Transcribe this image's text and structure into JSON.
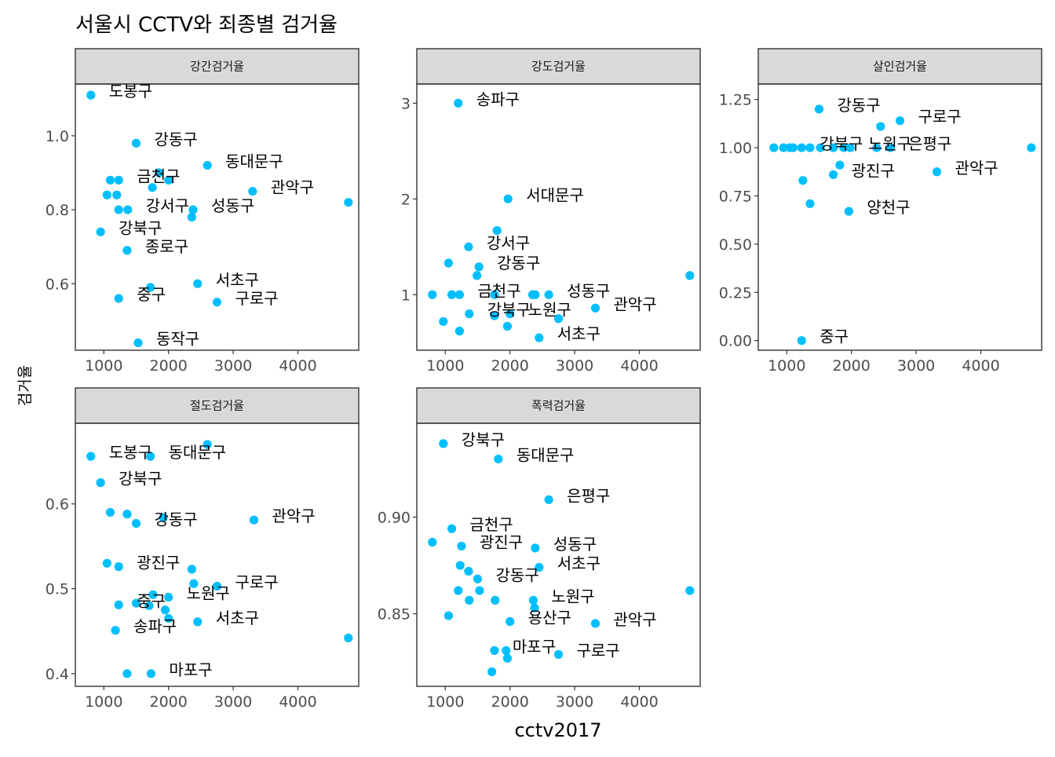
{
  "title": "서울시 CCTV와 죄종별 검거율",
  "chart_data": {
    "type": "scatter",
    "title": "서울시 CCTV와 죄종별 검거율",
    "xlabel": "cctv2017",
    "ylabel": "검거율",
    "xlim": [
      560,
      4940
    ],
    "xticks": [
      1000,
      2000,
      3000,
      4000
    ],
    "grid": false,
    "color": "#00bfff",
    "panels": [
      {
        "name": "강간검거율",
        "ylim": [
          0.42,
          1.14
        ],
        "yticks": [
          0.6,
          0.8,
          1.0
        ],
        "ytick_labels": [
          "0.6",
          "0.8",
          "1.0"
        ],
        "points": [
          {
            "x": 800,
            "y": 1.11,
            "label": "도봉구"
          },
          {
            "x": 1500,
            "y": 0.98,
            "label": "강동구"
          },
          {
            "x": 1100,
            "y": 0.88,
            "label": ""
          },
          {
            "x": 1230,
            "y": 0.88,
            "label": "금천구"
          },
          {
            "x": 1850,
            "y": 0.9,
            "label": ""
          },
          {
            "x": 2000,
            "y": 0.88,
            "label": ""
          },
          {
            "x": 2600,
            "y": 0.92,
            "label": "동대문구"
          },
          {
            "x": 1750,
            "y": 0.86,
            "label": ""
          },
          {
            "x": 1050,
            "y": 0.84,
            "label": ""
          },
          {
            "x": 1200,
            "y": 0.84,
            "label": ""
          },
          {
            "x": 3300,
            "y": 0.85,
            "label": "관악구"
          },
          {
            "x": 4780,
            "y": 0.82,
            "label": ""
          },
          {
            "x": 1230,
            "y": 0.8,
            "label": ""
          },
          {
            "x": 1370,
            "y": 0.8,
            "label": "강서구"
          },
          {
            "x": 2380,
            "y": 0.8,
            "label": "성동구"
          },
          {
            "x": 2360,
            "y": 0.78,
            "label": ""
          },
          {
            "x": 950,
            "y": 0.74,
            "label": "강북구"
          },
          {
            "x": 1360,
            "y": 0.69,
            "label": "종로구"
          },
          {
            "x": 1720,
            "y": 0.59,
            "label": ""
          },
          {
            "x": 2450,
            "y": 0.6,
            "label": "서초구"
          },
          {
            "x": 1230,
            "y": 0.56,
            "label": "중구"
          },
          {
            "x": 2750,
            "y": 0.55,
            "label": "구로구"
          },
          {
            "x": 1530,
            "y": 0.44,
            "label": "동작구"
          }
        ]
      },
      {
        "name": "강도검거율",
        "ylim": [
          0.42,
          3.2
        ],
        "yticks": [
          1,
          2,
          3
        ],
        "ytick_labels": [
          "1",
          "2",
          "3"
        ],
        "points": [
          {
            "x": 1200,
            "y": 3.0,
            "label": "송파구"
          },
          {
            "x": 1970,
            "y": 2.0,
            "label": "서대문구"
          },
          {
            "x": 1800,
            "y": 1.67,
            "label": ""
          },
          {
            "x": 1360,
            "y": 1.5,
            "label": "강서구"
          },
          {
            "x": 1050,
            "y": 1.33,
            "label": ""
          },
          {
            "x": 1520,
            "y": 1.29,
            "label": "강동구"
          },
          {
            "x": 1490,
            "y": 1.2,
            "label": ""
          },
          {
            "x": 4780,
            "y": 1.2,
            "label": ""
          },
          {
            "x": 800,
            "y": 1.0,
            "label": ""
          },
          {
            "x": 1100,
            "y": 1.0,
            "label": ""
          },
          {
            "x": 1220,
            "y": 1.0,
            "label": "금천구"
          },
          {
            "x": 1760,
            "y": 1.0,
            "label": ""
          },
          {
            "x": 2350,
            "y": 1.0,
            "label": ""
          },
          {
            "x": 2390,
            "y": 1.0,
            "label": ""
          },
          {
            "x": 2600,
            "y": 1.0,
            "label": "성동구"
          },
          {
            "x": 3320,
            "y": 0.86,
            "label": "관악구"
          },
          {
            "x": 1370,
            "y": 0.8,
            "label": "강북구"
          },
          {
            "x": 1760,
            "y": 0.78,
            "label": ""
          },
          {
            "x": 2000,
            "y": 0.8,
            "label": "노원구"
          },
          {
            "x": 2750,
            "y": 0.75,
            "label": ""
          },
          {
            "x": 970,
            "y": 0.72,
            "label": ""
          },
          {
            "x": 1960,
            "y": 0.67,
            "label": ""
          },
          {
            "x": 1220,
            "y": 0.62,
            "label": ""
          },
          {
            "x": 2450,
            "y": 0.55,
            "label": "서초구"
          }
        ]
      },
      {
        "name": "살인검거율",
        "ylim": [
          -0.05,
          1.33
        ],
        "yticks": [
          0.0,
          0.25,
          0.5,
          0.75,
          1.0,
          1.25
        ],
        "ytick_labels": [
          "0.00",
          "0.25",
          "0.50",
          "0.75",
          "1.00",
          "1.25"
        ],
        "points": [
          {
            "x": 1500,
            "y": 1.2,
            "label": "강동구"
          },
          {
            "x": 2750,
            "y": 1.14,
            "label": "구로구"
          },
          {
            "x": 2450,
            "y": 1.11,
            "label": ""
          },
          {
            "x": 800,
            "y": 1.0,
            "label": ""
          },
          {
            "x": 950,
            "y": 1.0,
            "label": ""
          },
          {
            "x": 1050,
            "y": 1.0,
            "label": ""
          },
          {
            "x": 1100,
            "y": 1.0,
            "label": ""
          },
          {
            "x": 1230,
            "y": 1.0,
            "label": "강북구"
          },
          {
            "x": 1360,
            "y": 1.0,
            "label": ""
          },
          {
            "x": 1520,
            "y": 1.0,
            "label": ""
          },
          {
            "x": 1720,
            "y": 1.0,
            "label": ""
          },
          {
            "x": 1880,
            "y": 1.0,
            "label": ""
          },
          {
            "x": 1980,
            "y": 1.0,
            "label": "노원구"
          },
          {
            "x": 2390,
            "y": 1.0,
            "label": ""
          },
          {
            "x": 2600,
            "y": 1.0,
            "label": "은평구"
          },
          {
            "x": 4780,
            "y": 1.0,
            "label": ""
          },
          {
            "x": 1820,
            "y": 0.91,
            "label": ""
          },
          {
            "x": 3320,
            "y": 0.875,
            "label": "관악구"
          },
          {
            "x": 1720,
            "y": 0.86,
            "label": "광진구"
          },
          {
            "x": 1250,
            "y": 0.83,
            "label": ""
          },
          {
            "x": 1360,
            "y": 0.71,
            "label": ""
          },
          {
            "x": 1960,
            "y": 0.67,
            "label": "양천구"
          },
          {
            "x": 1230,
            "y": 0.0,
            "label": "중구"
          }
        ]
      },
      {
        "name": "절도검거율",
        "ylim": [
          0.385,
          0.695
        ],
        "yticks": [
          0.4,
          0.5,
          0.6
        ],
        "ytick_labels": [
          "0.4",
          "0.5",
          "0.6"
        ],
        "points": [
          {
            "x": 2600,
            "y": 0.67,
            "label": ""
          },
          {
            "x": 800,
            "y": 0.656,
            "label": "도봉구"
          },
          {
            "x": 1720,
            "y": 0.656,
            "label": "동대문구"
          },
          {
            "x": 950,
            "y": 0.625,
            "label": "강북구"
          },
          {
            "x": 1100,
            "y": 0.59,
            "label": ""
          },
          {
            "x": 1360,
            "y": 0.588,
            "label": ""
          },
          {
            "x": 1920,
            "y": 0.584,
            "label": ""
          },
          {
            "x": 1500,
            "y": 0.577,
            "label": "강동구"
          },
          {
            "x": 3320,
            "y": 0.581,
            "label": "관악구"
          },
          {
            "x": 1050,
            "y": 0.53,
            "label": ""
          },
          {
            "x": 1230,
            "y": 0.526,
            "label": "광진구"
          },
          {
            "x": 2360,
            "y": 0.523,
            "label": ""
          },
          {
            "x": 2750,
            "y": 0.503,
            "label": "구로구"
          },
          {
            "x": 2390,
            "y": 0.506,
            "label": ""
          },
          {
            "x": 1760,
            "y": 0.493,
            "label": ""
          },
          {
            "x": 2000,
            "y": 0.49,
            "label": "노원구"
          },
          {
            "x": 1230,
            "y": 0.481,
            "label": "중구"
          },
          {
            "x": 1500,
            "y": 0.483,
            "label": ""
          },
          {
            "x": 1700,
            "y": 0.48,
            "label": ""
          },
          {
            "x": 1950,
            "y": 0.475,
            "label": ""
          },
          {
            "x": 2000,
            "y": 0.465,
            "label": ""
          },
          {
            "x": 2450,
            "y": 0.461,
            "label": "서초구"
          },
          {
            "x": 1180,
            "y": 0.451,
            "label": "송파구"
          },
          {
            "x": 4780,
            "y": 0.442,
            "label": ""
          },
          {
            "x": 1360,
            "y": 0.4,
            "label": ""
          },
          {
            "x": 1730,
            "y": 0.4,
            "label": "마포구"
          }
        ]
      },
      {
        "name": "폭력검거율",
        "ylim": [
          0.8125,
          0.9485
        ],
        "yticks": [
          0.85,
          0.9
        ],
        "ytick_labels": [
          "0.85",
          "0.90"
        ],
        "points": [
          {
            "x": 970,
            "y": 0.938,
            "label": "강북구"
          },
          {
            "x": 1820,
            "y": 0.93,
            "label": "동대문구"
          },
          {
            "x": 2600,
            "y": 0.909,
            "label": "은평구"
          },
          {
            "x": 1100,
            "y": 0.894,
            "label": "금천구"
          },
          {
            "x": 800,
            "y": 0.887,
            "label": ""
          },
          {
            "x": 1250,
            "y": 0.885,
            "label": "광진구"
          },
          {
            "x": 2390,
            "y": 0.884,
            "label": "성동구"
          },
          {
            "x": 1230,
            "y": 0.875,
            "label": ""
          },
          {
            "x": 2450,
            "y": 0.874,
            "label": "서초구"
          },
          {
            "x": 1360,
            "y": 0.872,
            "label": ""
          },
          {
            "x": 1500,
            "y": 0.868,
            "label": "강동구"
          },
          {
            "x": 1200,
            "y": 0.862,
            "label": ""
          },
          {
            "x": 1530,
            "y": 0.862,
            "label": ""
          },
          {
            "x": 4780,
            "y": 0.862,
            "label": ""
          },
          {
            "x": 1370,
            "y": 0.857,
            "label": ""
          },
          {
            "x": 1770,
            "y": 0.857,
            "label": ""
          },
          {
            "x": 2360,
            "y": 0.857,
            "label": "노원구"
          },
          {
            "x": 2380,
            "y": 0.853,
            "label": ""
          },
          {
            "x": 1050,
            "y": 0.849,
            "label": ""
          },
          {
            "x": 2000,
            "y": 0.846,
            "label": "용산구"
          },
          {
            "x": 3320,
            "y": 0.845,
            "label": "관악구"
          },
          {
            "x": 1760,
            "y": 0.831,
            "label": "마포구"
          },
          {
            "x": 1940,
            "y": 0.831,
            "label": ""
          },
          {
            "x": 1960,
            "y": 0.827,
            "label": ""
          },
          {
            "x": 2750,
            "y": 0.829,
            "label": "구로구"
          },
          {
            "x": 1720,
            "y": 0.82,
            "label": ""
          }
        ]
      }
    ]
  }
}
